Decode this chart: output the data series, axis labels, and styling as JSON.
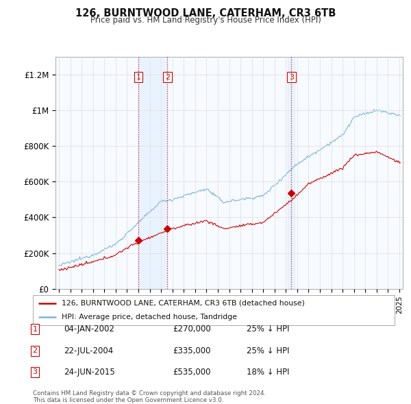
{
  "title": "126, BURNTWOOD LANE, CATERHAM, CR3 6TB",
  "subtitle": "Price paid vs. HM Land Registry's House Price Index (HPI)",
  "hpi_color": "#7ab4d8",
  "price_color": "#cc0000",
  "vline_color": "#cc0000",
  "shade_color": "#ddeeff",
  "bg_color": "#ffffff",
  "grid_color": "#dddddd",
  "ylim": [
    0,
    1300000
  ],
  "yticks": [
    0,
    200000,
    400000,
    600000,
    800000,
    1000000,
    1200000
  ],
  "ytick_labels": [
    "£0",
    "£200K",
    "£400K",
    "£600K",
    "£800K",
    "£1M",
    "£1.2M"
  ],
  "transactions": [
    {
      "label": "1",
      "date": "04-JAN-2002",
      "price": 270000,
      "pct": "25%",
      "dir": "↓",
      "x_year": 2002.01
    },
    {
      "label": "2",
      "date": "22-JUL-2004",
      "price": 335000,
      "pct": "25%",
      "dir": "↓",
      "x_year": 2004.55
    },
    {
      "label": "3",
      "date": "24-JUN-2015",
      "price": 535000,
      "pct": "18%",
      "dir": "↓",
      "x_year": 2015.48
    }
  ],
  "legend_house_label": "126, BURNTWOOD LANE, CATERHAM, CR3 6TB (detached house)",
  "legend_hpi_label": "HPI: Average price, detached house, Tandridge",
  "footnote": "Contains HM Land Registry data © Crown copyright and database right 2024.\nThis data is licensed under the Open Government Licence v3.0.",
  "xlim_start": 1994.7,
  "xlim_end": 2025.3
}
